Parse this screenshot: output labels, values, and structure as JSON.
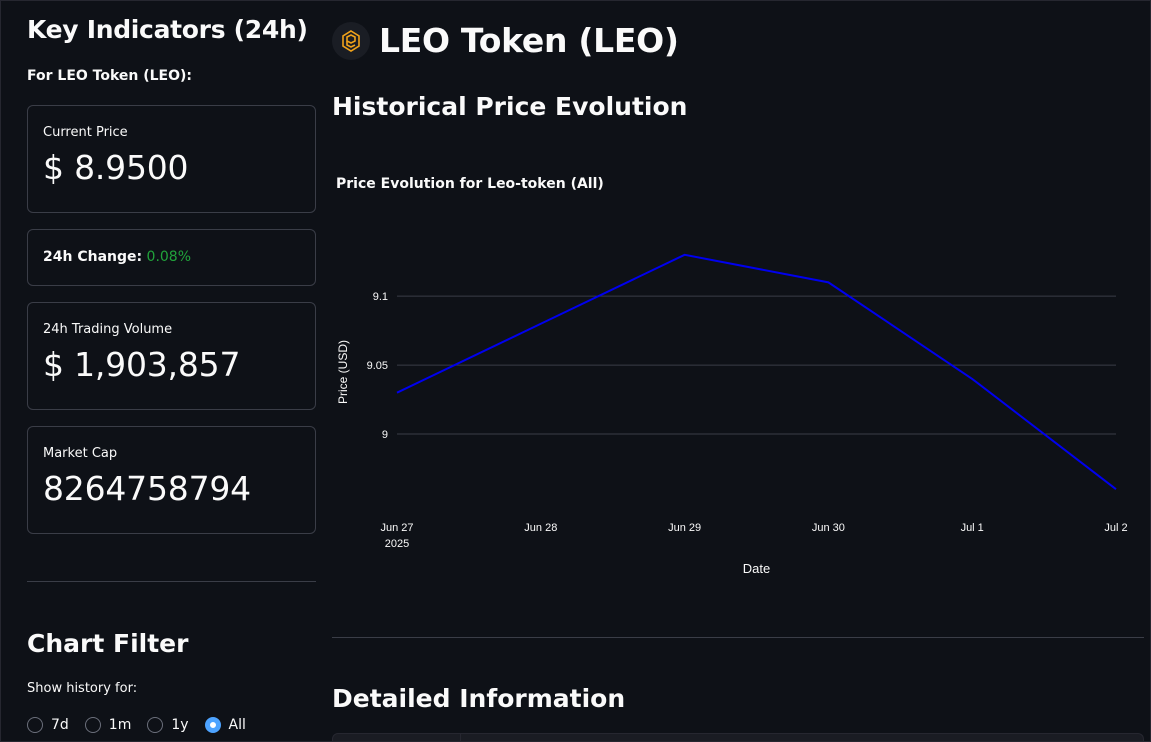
{
  "sidebar": {
    "title": "Key Indicators (24h)",
    "for_label": "For LEO Token (LEO):",
    "current_price": {
      "label": "Current Price",
      "value": "$ 8.9500"
    },
    "change": {
      "label": "24h Change:",
      "value": "0.08%"
    },
    "volume": {
      "label": "24h Trading Volume",
      "value": "$ 1,903,857"
    },
    "market_cap": {
      "label": "Market Cap",
      "value": "8264758794"
    },
    "filter": {
      "title": "Chart Filter",
      "label": "Show history for:",
      "options": [
        "7d",
        "1m",
        "1y",
        "All"
      ],
      "selected": "All"
    }
  },
  "main": {
    "token_title": "LEO Token (LEO)",
    "history_title": "Historical Price Evolution",
    "details_title": "Detailed Information"
  },
  "colors": {
    "accent": "#4da3ff",
    "line": "#0000ee",
    "positive": "#21a33b",
    "background": "#0e1117"
  },
  "chart_data": {
    "type": "line",
    "title": "Price Evolution for Leo-token (All)",
    "xlabel": "Date",
    "ylabel": "Price (USD)",
    "x": [
      "2025-06-27",
      "2025-06-28",
      "2025-06-29",
      "2025-06-30",
      "2025-07-01",
      "2025-07-02"
    ],
    "x_tick_labels": [
      "Jun 27",
      "Jun 28",
      "Jun 29",
      "Jun 30",
      "Jul 1",
      "Jul 2"
    ],
    "x_tick_sublabel": "2025",
    "y": [
      9.03,
      9.08,
      9.13,
      9.11,
      9.04,
      8.96
    ],
    "y_ticks": [
      9,
      9.05,
      9.1
    ],
    "ylim": [
      8.95,
      9.14
    ],
    "grid": true
  }
}
